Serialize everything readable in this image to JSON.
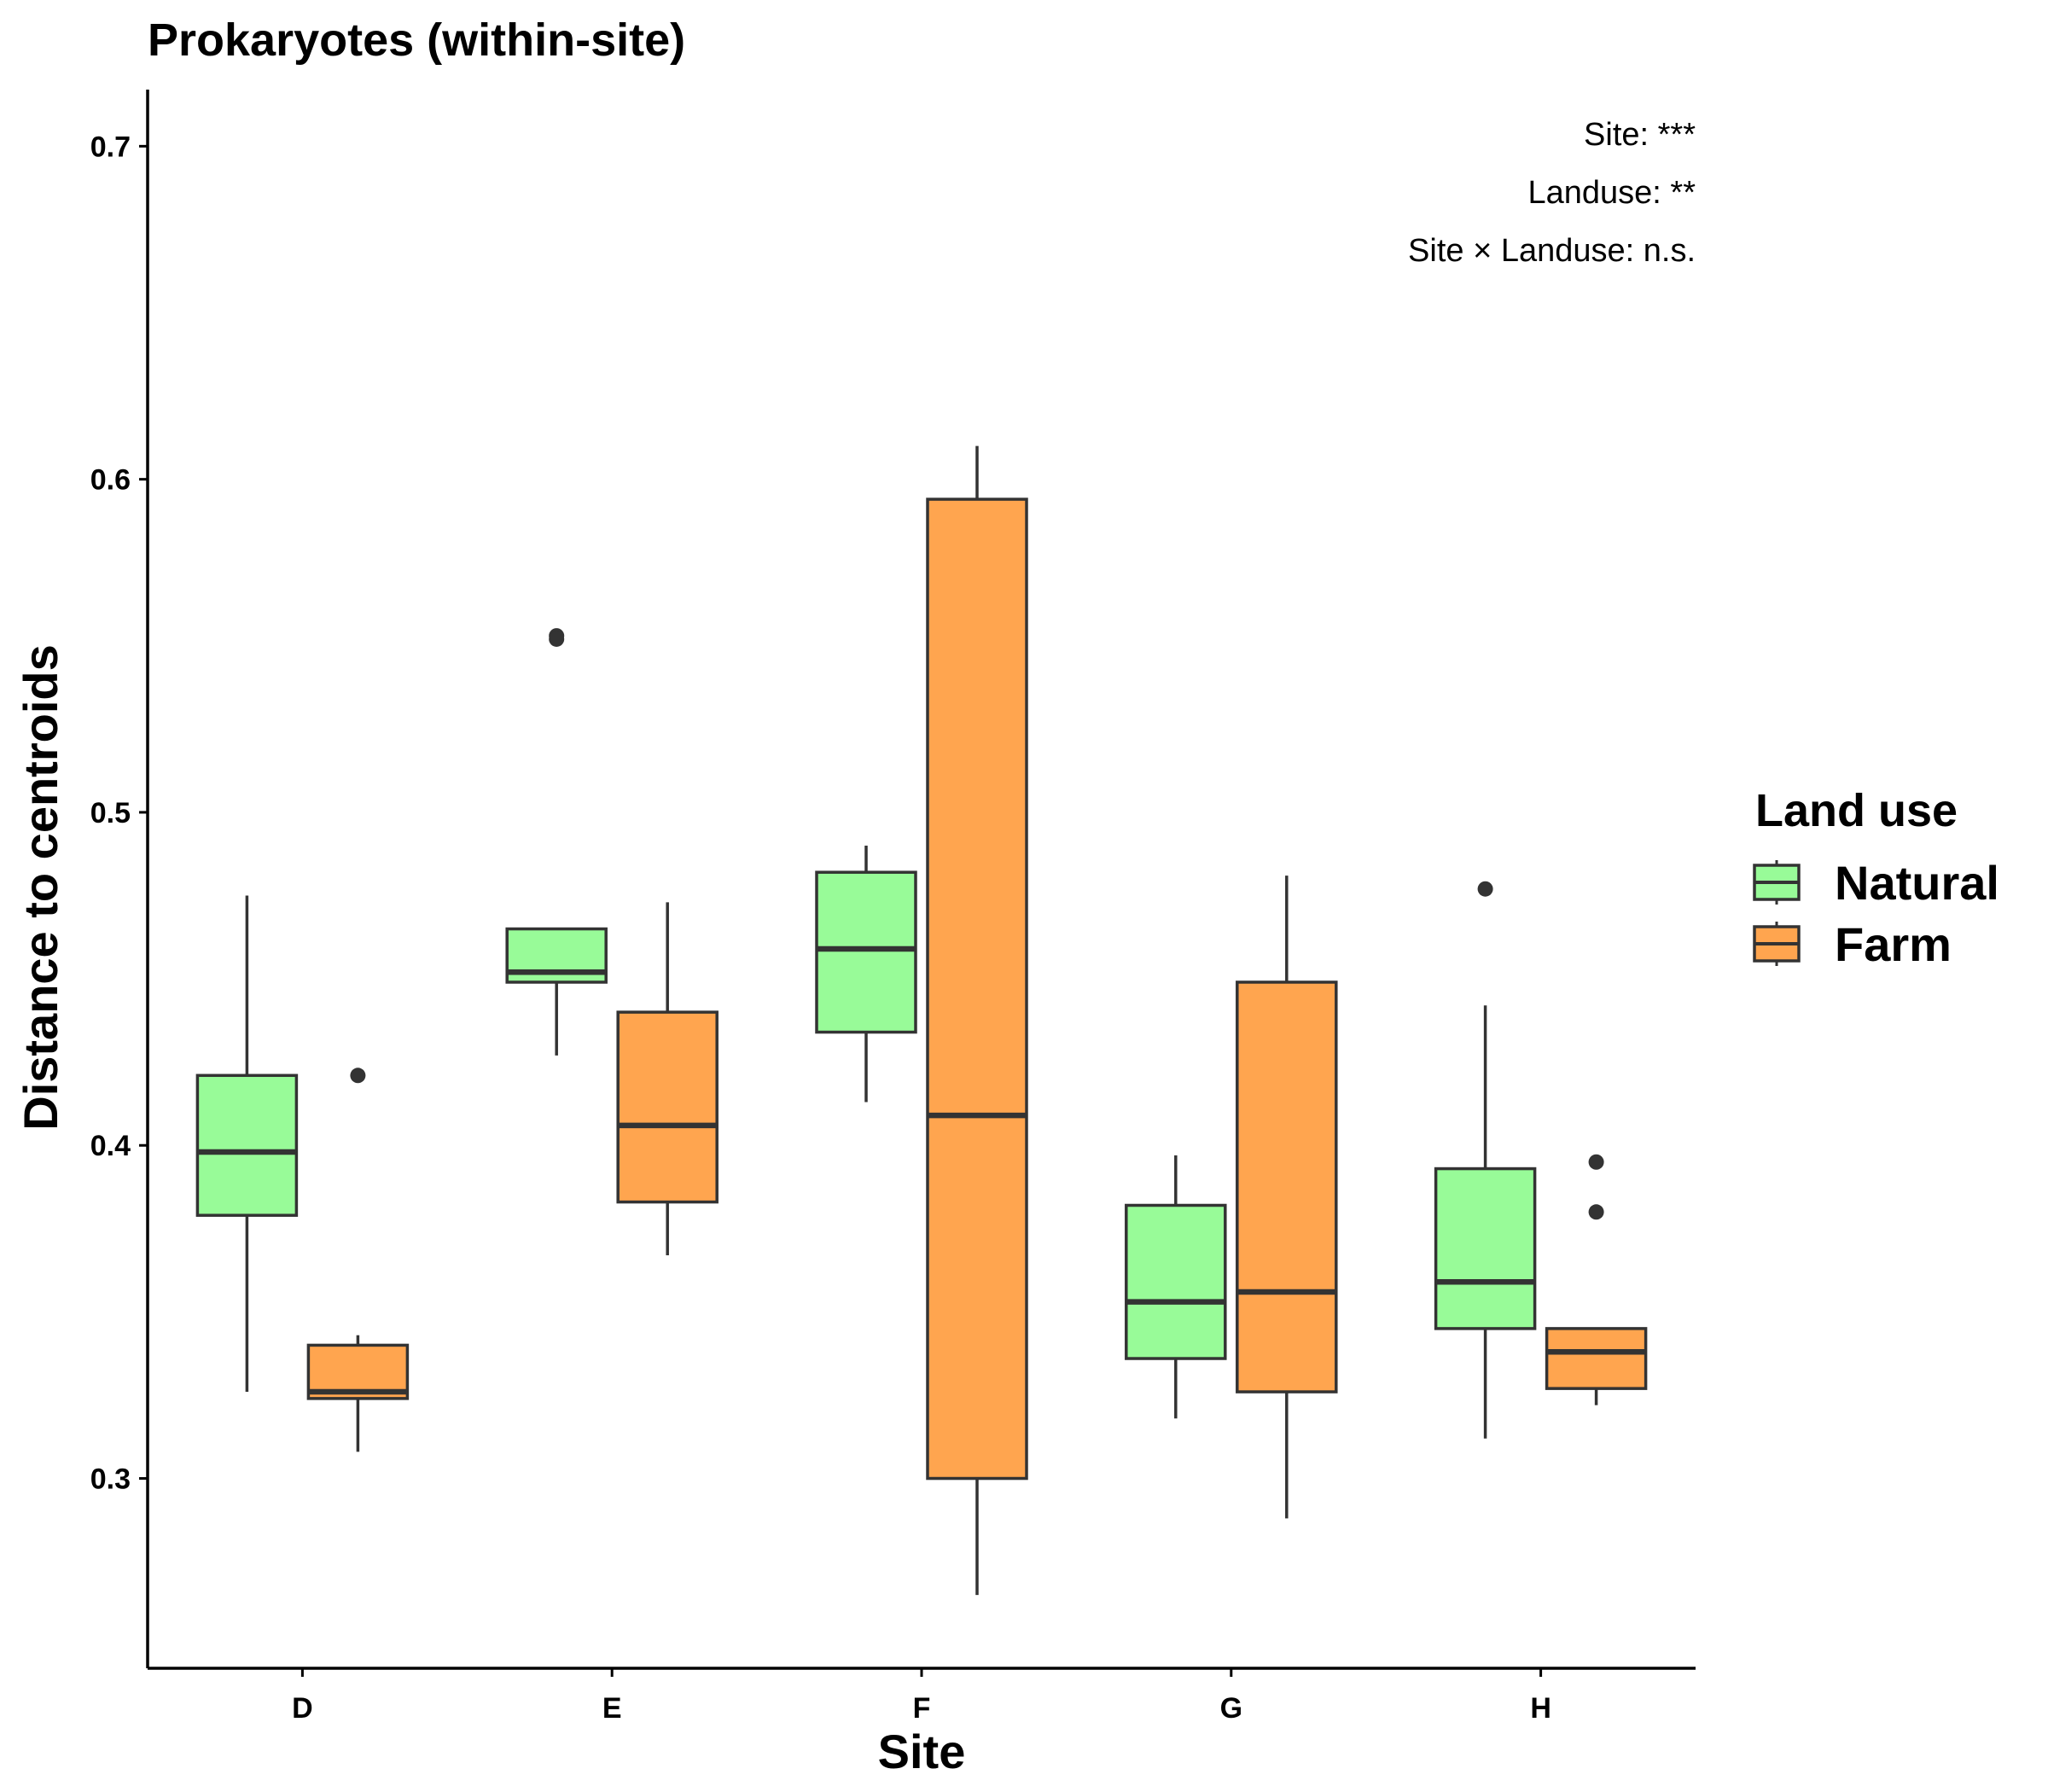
{
  "chart_data": {
    "type": "boxplot",
    "title": "Prokaryotes (within-site)",
    "xlabel": "Site",
    "ylabel": "Distance to centroids",
    "ylim": [
      0.243,
      0.717
    ],
    "yticks": [
      0.3,
      0.4,
      0.5,
      0.6,
      0.7
    ],
    "ytick_labels": [
      "0.3",
      "0.4",
      "0.5",
      "0.6",
      "0.7"
    ],
    "categories": [
      "D",
      "E",
      "F",
      "G",
      "H"
    ],
    "grid": false,
    "legend": {
      "title": "Land use",
      "position": "right"
    },
    "annotations": [
      "Site: ***",
      "Landuse: **",
      "Site × Landuse: n.s."
    ],
    "series": [
      {
        "name": "Natural",
        "color": "#98FB98",
        "boxes": [
          {
            "category": "D",
            "whisker_low": 0.326,
            "q1": 0.379,
            "median": 0.398,
            "q3": 0.421,
            "whisker_high": 0.475,
            "outliers": []
          },
          {
            "category": "E",
            "whisker_low": 0.427,
            "q1": 0.449,
            "median": 0.452,
            "q3": 0.465,
            "whisker_high": 0.465,
            "outliers": [
              0.553,
              0.552
            ]
          },
          {
            "category": "F",
            "whisker_low": 0.413,
            "q1": 0.434,
            "median": 0.459,
            "q3": 0.482,
            "whisker_high": 0.49,
            "outliers": []
          },
          {
            "category": "G",
            "whisker_low": 0.318,
            "q1": 0.336,
            "median": 0.353,
            "q3": 0.382,
            "whisker_high": 0.397,
            "outliers": []
          },
          {
            "category": "H",
            "whisker_low": 0.312,
            "q1": 0.345,
            "median": 0.359,
            "q3": 0.393,
            "whisker_high": 0.442,
            "outliers": [
              0.477
            ]
          }
        ]
      },
      {
        "name": "Farm",
        "color": "#FFA54F",
        "boxes": [
          {
            "category": "D",
            "whisker_low": 0.308,
            "q1": 0.324,
            "median": 0.326,
            "q3": 0.34,
            "whisker_high": 0.343,
            "outliers": [
              0.421
            ]
          },
          {
            "category": "E",
            "whisker_low": 0.367,
            "q1": 0.383,
            "median": 0.406,
            "q3": 0.44,
            "whisker_high": 0.473,
            "outliers": []
          },
          {
            "category": "F",
            "whisker_low": 0.265,
            "q1": 0.3,
            "median": 0.409,
            "q3": 0.594,
            "whisker_high": 0.61,
            "outliers": []
          },
          {
            "category": "G",
            "whisker_low": 0.288,
            "q1": 0.326,
            "median": 0.356,
            "q3": 0.449,
            "whisker_high": 0.481,
            "outliers": []
          },
          {
            "category": "H",
            "whisker_low": 0.322,
            "q1": 0.327,
            "median": 0.338,
            "q3": 0.345,
            "whisker_high": 0.345,
            "outliers": [
              0.395,
              0.38
            ]
          }
        ]
      }
    ]
  }
}
